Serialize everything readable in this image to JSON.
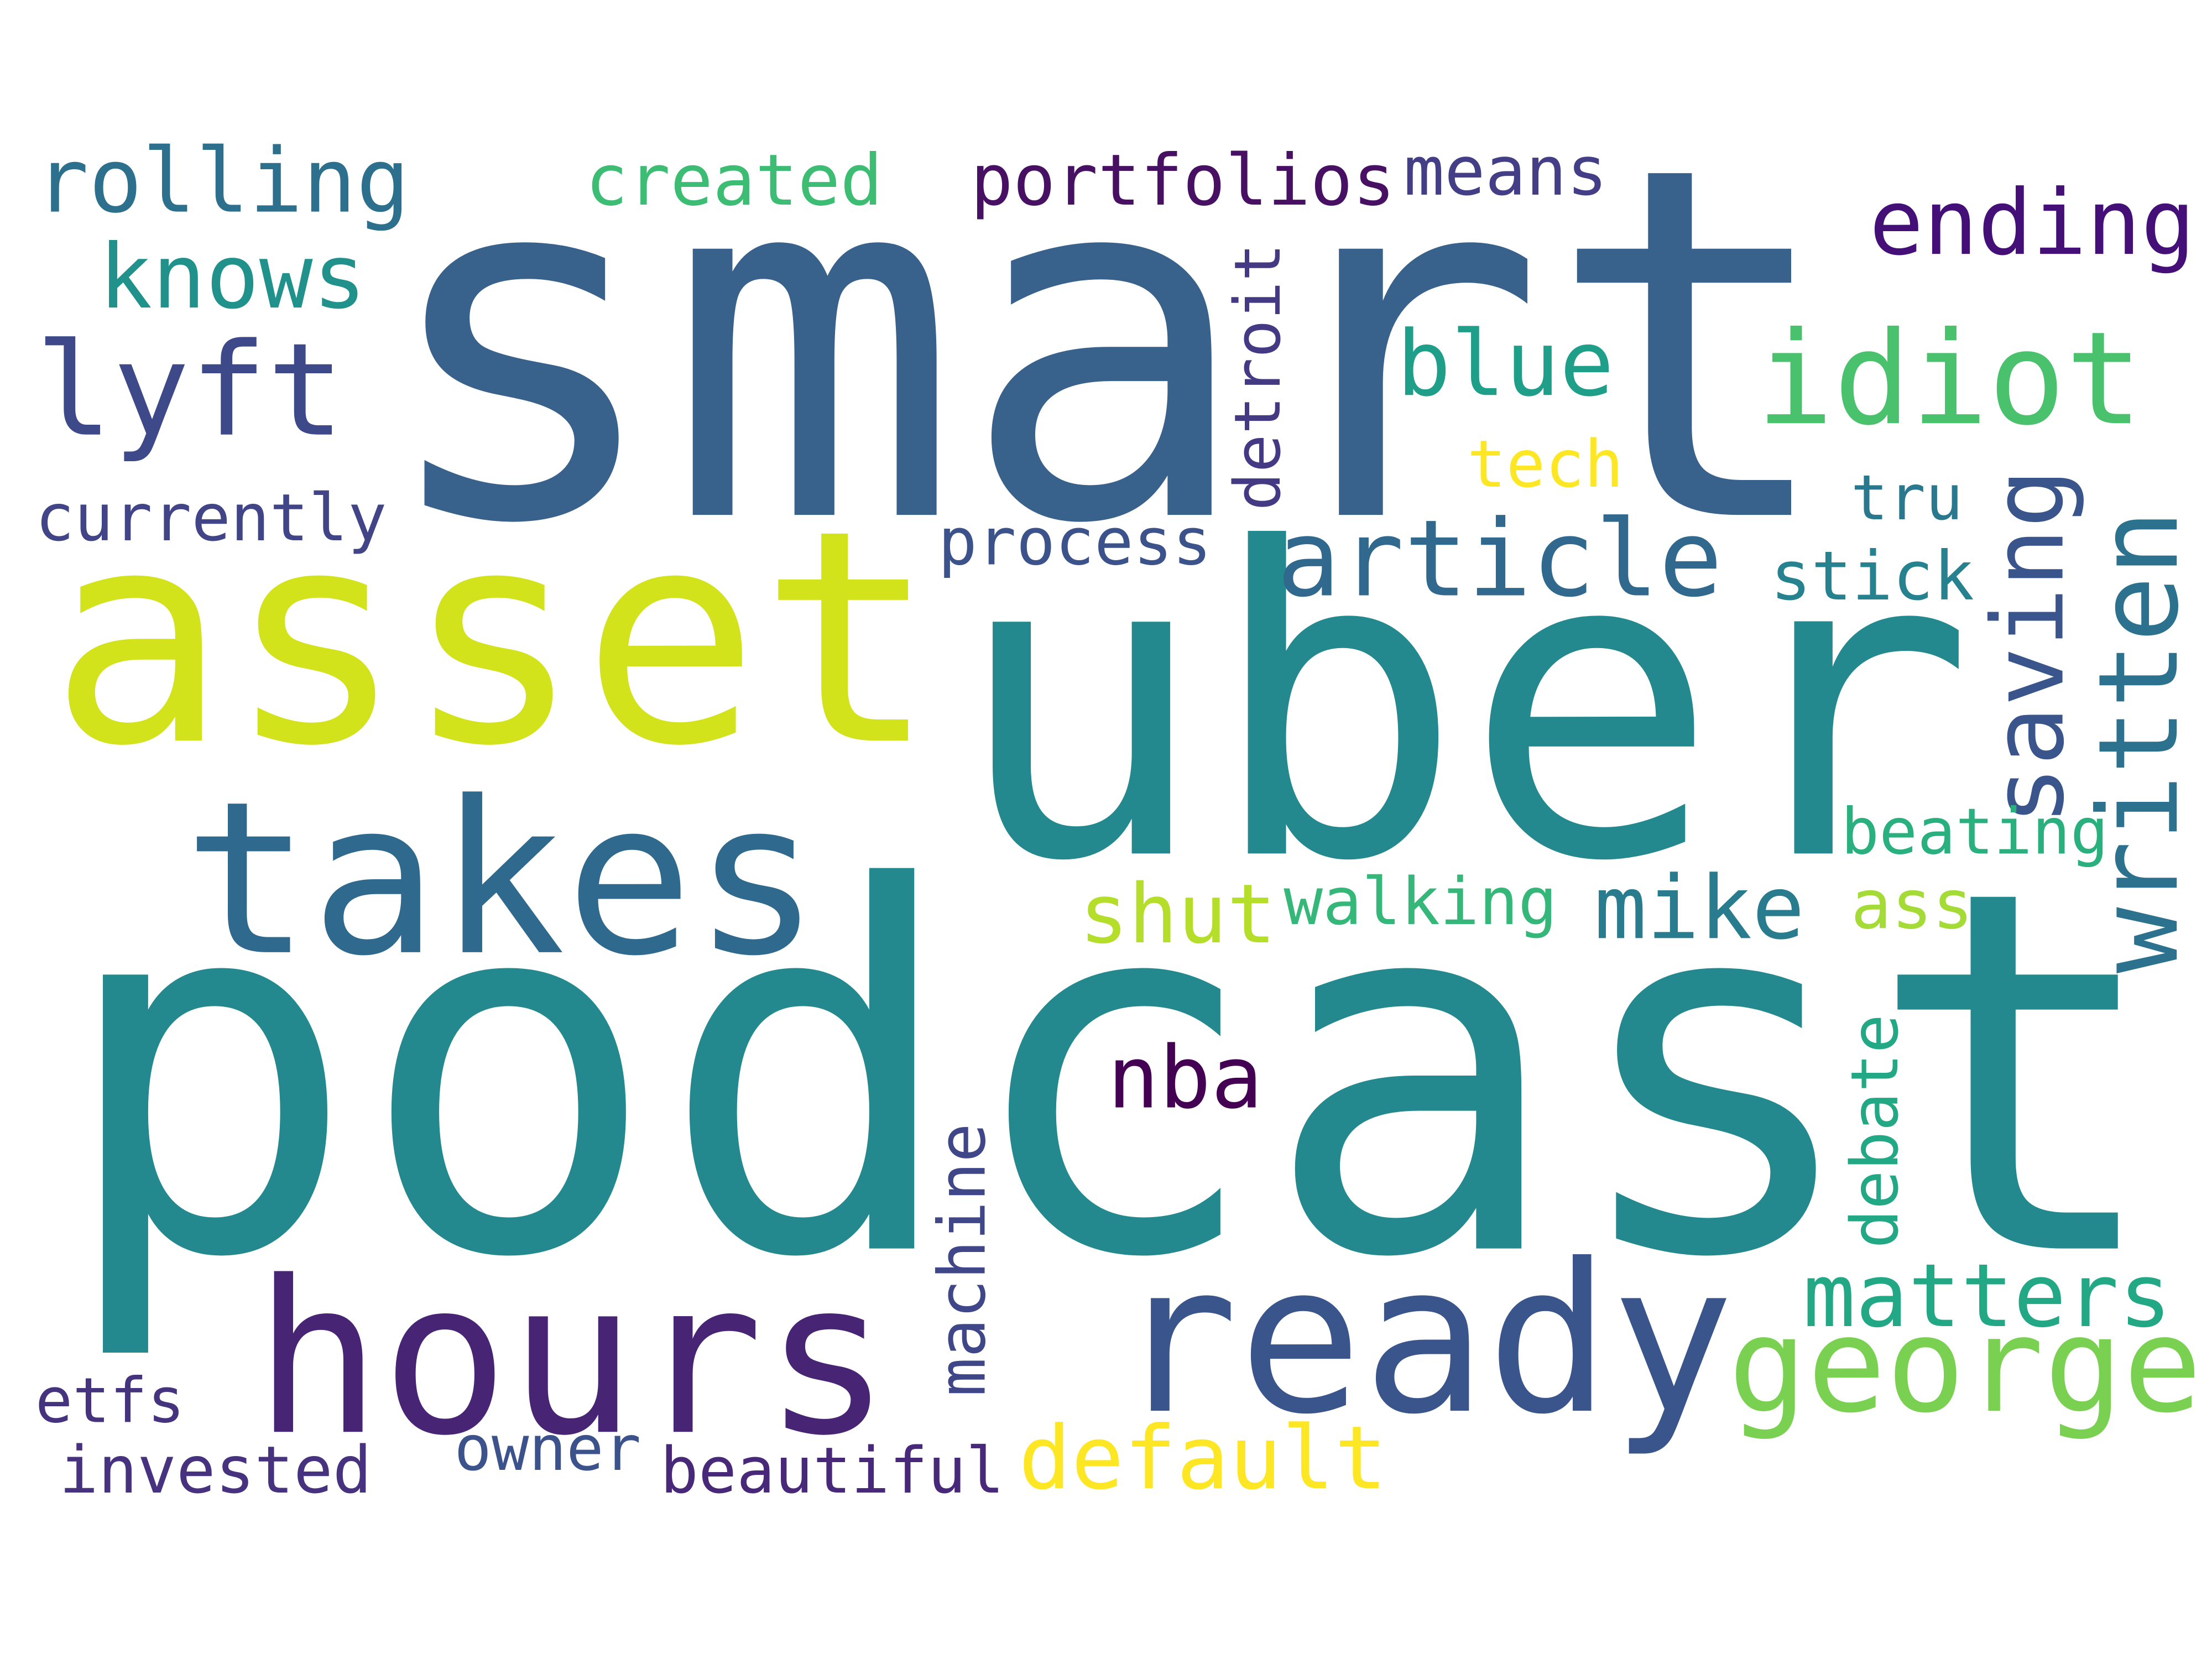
{
  "words": [
    "smart",
    "podcast",
    "uber",
    "asset",
    "takes",
    "hours",
    "ready",
    "george",
    "idiot",
    "article",
    "lyft",
    "rolling",
    "knows",
    "created",
    "portfolios",
    "means",
    "ending",
    "blue",
    "tech",
    "currently",
    "process",
    "stick",
    "tru",
    "detroit",
    "saving",
    "written",
    "beating",
    "ass",
    "mike",
    "shut",
    "walking",
    "nba",
    "debate",
    "machine",
    "matters",
    "default",
    "etfs",
    "invested",
    "owner",
    "beautiful"
  ]
}
